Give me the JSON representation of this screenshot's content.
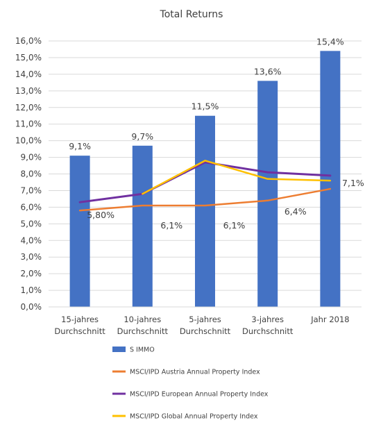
{
  "chart_data": {
    "type": "bar",
    "title": "Total Returns",
    "categories": [
      [
        "15-jahres",
        "Durchschnitt"
      ],
      [
        "10-jahres",
        "Durchschnitt"
      ],
      [
        "5-jahres",
        "Durchschnitt"
      ],
      [
        "3-jahres",
        "Durchschnitt"
      ],
      [
        "Jahr 2018"
      ]
    ],
    "ylim": [
      0,
      16
    ],
    "ytick_step": 1,
    "ytick_labels": [
      "0,0%",
      "1,0%",
      "2,0%",
      "3,0%",
      "4,0%",
      "5,0%",
      "6,0%",
      "7,0%",
      "8,0%",
      "9,0%",
      "10,0%",
      "11,0%",
      "12,0%",
      "13,0%",
      "14,0%",
      "15,0%",
      "16,0%"
    ],
    "grid": true,
    "legend_position": "bottom",
    "series": [
      {
        "name": "S IMMO",
        "type": "bar",
        "color": "#4472C4",
        "values": [
          9.1,
          9.7,
          11.5,
          13.6,
          15.4
        ],
        "labels": [
          "9,1%",
          "9,7%",
          "11,5%",
          "13,6%",
          "15,4%"
        ]
      },
      {
        "name": "MSCI/IPD Austria Annual Property Index",
        "type": "line",
        "color": "#ED7D31",
        "values": [
          5.8,
          6.1,
          6.1,
          6.4,
          7.1
        ],
        "labels": [
          "5,80%",
          "6,1%",
          "6,1%",
          "6,4%",
          "7,1%"
        ]
      },
      {
        "name": "MSCI/IPD European Annual Property Index",
        "type": "line",
        "color": "#7030A0",
        "values": [
          6.3,
          6.8,
          8.7,
          8.1,
          7.9
        ],
        "labels": []
      },
      {
        "name": "MSCI/IPD Global Annual Property Index",
        "type": "line",
        "color": "#FFC000",
        "values": [
          null,
          6.8,
          8.8,
          7.7,
          7.6
        ],
        "labels": []
      }
    ]
  }
}
